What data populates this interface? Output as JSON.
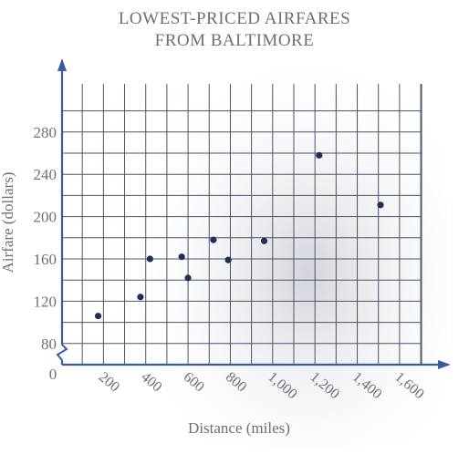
{
  "chart_data": {
    "type": "scatter",
    "title_lines": [
      "LOWEST-PRICED AIRFARES",
      "FROM BALTIMORE"
    ],
    "xlabel": "Distance (miles)",
    "ylabel": "Airfare (dollars)",
    "x_ticks": [
      200,
      400,
      600,
      800,
      1000,
      1200,
      1400,
      1600
    ],
    "x_tick_labels": [
      "200",
      "400",
      "600",
      "800",
      "1,000",
      "1,200",
      "1,400",
      "1,600"
    ],
    "y_ticks": [
      80,
      120,
      160,
      200,
      240,
      280
    ],
    "y_tick_labels": [
      "80",
      "120",
      "160",
      "200",
      "240",
      "280"
    ],
    "origin_label": "0",
    "xlim": [
      0,
      1700
    ],
    "ylim": [
      60,
      300
    ],
    "y_axis_break": true,
    "grid": true,
    "point_color": "#1e2f5c",
    "grid_color": "#4a5468",
    "axis_color": "#3b5aa6",
    "points": [
      {
        "x": 175,
        "y": 106
      },
      {
        "x": 375,
        "y": 124
      },
      {
        "x": 420,
        "y": 160
      },
      {
        "x": 570,
        "y": 162
      },
      {
        "x": 600,
        "y": 142
      },
      {
        "x": 720,
        "y": 178
      },
      {
        "x": 790,
        "y": 159
      },
      {
        "x": 960,
        "y": 177
      },
      {
        "x": 1220,
        "y": 258
      },
      {
        "x": 1510,
        "y": 211
      }
    ]
  }
}
